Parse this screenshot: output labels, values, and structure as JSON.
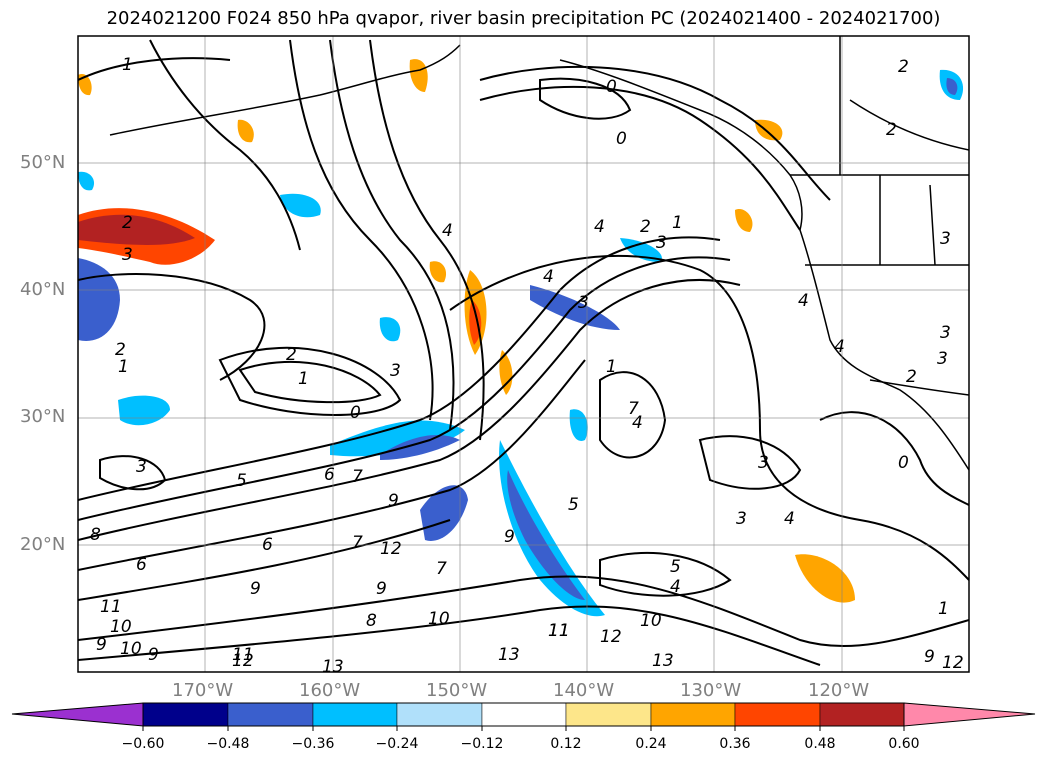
{
  "title": "2024021200 F024 850 hPa qvapor, river basin precipitation PC (2024021400 - 2024021700)",
  "map": {
    "projection": "PlateCarree",
    "lon_range": [
      -178,
      -108
    ],
    "lat_range": [
      10,
      60
    ],
    "lat_labels": [
      "20°N",
      "30°N",
      "40°N",
      "50°N"
    ],
    "lon_labels": [
      "170°W",
      "160°W",
      "150°W",
      "140°W",
      "130°W",
      "120°W"
    ],
    "gridlines": true,
    "coastlines": true,
    "state_borders": true,
    "field_contours": "850 hPa qvapor (g/kg), black line contours",
    "shaded_field": "river basin precipitation PC"
  },
  "contour_labels": [
    "1",
    "2",
    "2",
    "0",
    "0",
    "2",
    "3",
    "4",
    "2",
    "1",
    "3",
    "4",
    "3",
    "4",
    "4",
    "3",
    "3",
    "2",
    "4",
    "3",
    "2",
    "1",
    "0",
    "3",
    "4",
    "3",
    "7",
    "1",
    "2",
    "1",
    "0",
    "3",
    "5",
    "6",
    "7",
    "9",
    "9",
    "5",
    "7",
    "8",
    "6",
    "6",
    "9",
    "7",
    "9",
    "11",
    "10",
    "9",
    "10",
    "8",
    "9",
    "12",
    "11",
    "13",
    "12",
    "10",
    "11",
    "5",
    "4",
    "4",
    "3",
    "9",
    "12",
    "11",
    "13",
    "12",
    "10",
    "13",
    "1"
  ],
  "colorbar": {
    "extend": "both",
    "ticks": [
      "−0.60",
      "−0.48",
      "−0.36",
      "−0.24",
      "−0.12",
      "0.12",
      "0.24",
      "0.36",
      "0.48",
      "0.60"
    ],
    "colors": [
      "#9b30d0",
      "#00008b",
      "#3a5fcd",
      "#00bfff",
      "#b0e0fa",
      "#ffffff",
      "#fde68a",
      "#ffa500",
      "#ff4500",
      "#b22222",
      "#ff88aa"
    ]
  }
}
